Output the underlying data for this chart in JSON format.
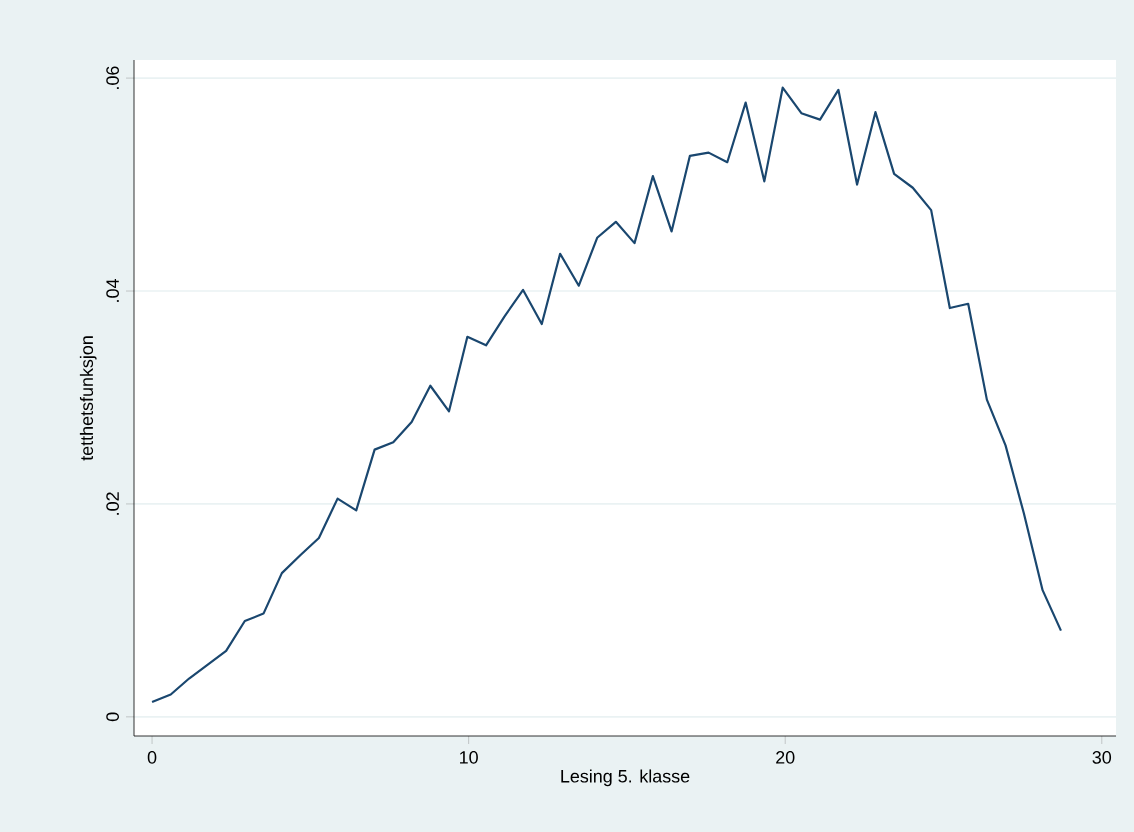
{
  "chart_data": {
    "type": "line",
    "xlabel": "Lesing 5. klasse",
    "ylabel": "tetthetsfunksjon",
    "x": [
      0,
      0.59,
      1.17,
      1.76,
      2.34,
      2.93,
      3.52,
      4.1,
      4.69,
      5.27,
      5.86,
      6.45,
      7.03,
      7.62,
      8.2,
      8.79,
      9.38,
      9.96,
      10.55,
      11.13,
      11.72,
      12.31,
      12.89,
      13.48,
      14.06,
      14.65,
      15.24,
      15.82,
      16.41,
      16.99,
      17.58,
      18.17,
      18.75,
      19.34,
      19.92,
      20.51,
      21.1,
      21.68,
      22.27,
      22.85,
      23.44,
      24.03,
      24.61,
      25.2,
      25.78,
      26.37,
      26.96,
      27.54,
      28.13,
      28.71
    ],
    "series": [
      {
        "color": "#1a476f",
        "values": [
          0.0014,
          0.0021,
          0.0036,
          0.0049,
          0.0062,
          0.009,
          0.0097,
          0.0135,
          0.0152,
          0.0168,
          0.0205,
          0.0194,
          0.0251,
          0.0258,
          0.0277,
          0.0311,
          0.0287,
          0.0357,
          0.0349,
          0.0376,
          0.0401,
          0.0369,
          0.0435,
          0.0405,
          0.045,
          0.0465,
          0.0445,
          0.0508,
          0.0456,
          0.0527,
          0.053,
          0.0521,
          0.0577,
          0.0503,
          0.0591,
          0.0567,
          0.0561,
          0.0589,
          0.05,
          0.0568,
          0.051,
          0.0497,
          0.0476,
          0.0384,
          0.0388,
          0.0298,
          0.0255,
          0.0191,
          0.0119,
          0.0081
        ]
      }
    ],
    "xlim": [
      -0.57,
      30.45
    ],
    "ylim": [
      -0.0018,
      0.0617
    ],
    "xticks": [
      0,
      10,
      20,
      30
    ],
    "yticks": [
      0,
      {
        "value": 0.02,
        "label": ".02"
      },
      {
        "value": 0.04,
        "label": ".04"
      },
      {
        "value": 0.06,
        "label": ".06"
      }
    ],
    "grid": "y",
    "marker": "none",
    "line_style": "solid"
  }
}
